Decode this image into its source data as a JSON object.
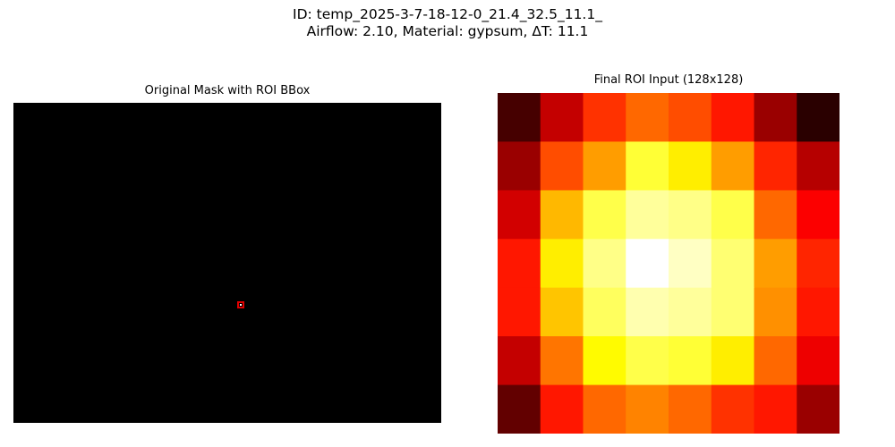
{
  "figure": {
    "title_line1": "ID: temp_2025-3-7-18-12-0_21.4_32.5_11.1_",
    "title_line2": "Airflow: 2.10, Material: gypsum, ΔT: 11.1"
  },
  "left_panel": {
    "title": "Original Mask with ROI BBox",
    "background_color": "#000000",
    "bbox_color": "#e00000",
    "roi_color": "#ffffff"
  },
  "right_panel": {
    "title": "Final ROI Input (128x128)",
    "colormap": "hot",
    "grid_size": [
      8,
      7
    ],
    "intensity": [
      [
        0.1,
        0.28,
        0.44,
        0.52,
        0.48,
        0.4,
        0.22,
        0.06
      ],
      [
        0.22,
        0.48,
        0.6,
        0.8,
        0.72,
        0.6,
        0.42,
        0.26
      ],
      [
        0.3,
        0.64,
        0.82,
        0.9,
        0.88,
        0.82,
        0.52,
        0.36
      ],
      [
        0.4,
        0.72,
        0.88,
        1.0,
        0.94,
        0.86,
        0.6,
        0.42
      ],
      [
        0.4,
        0.66,
        0.84,
        0.92,
        0.9,
        0.86,
        0.58,
        0.4
      ],
      [
        0.28,
        0.54,
        0.74,
        0.82,
        0.8,
        0.72,
        0.52,
        0.34
      ],
      [
        0.14,
        0.4,
        0.52,
        0.56,
        0.52,
        0.44,
        0.4,
        0.22
      ]
    ]
  }
}
